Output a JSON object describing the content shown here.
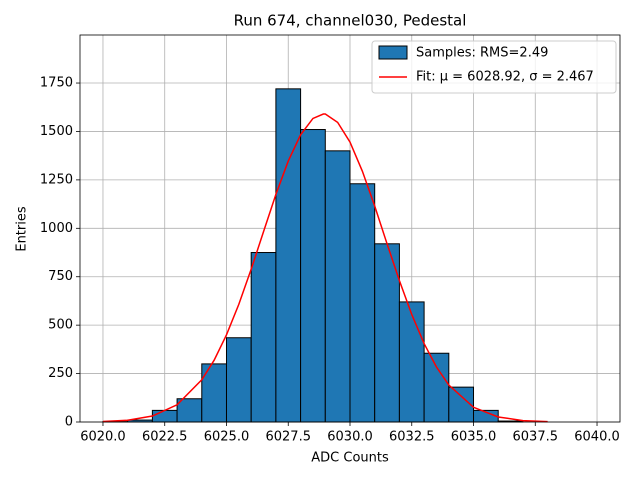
{
  "chart_data": {
    "type": "histogram",
    "title": "Run 674, channel030, Pedestal",
    "x_label": "ADC Counts",
    "y_label": "Entries",
    "name": "Samples: RMS=2.49",
    "color": "#1f77b4",
    "edgecolor": "#000000",
    "bins": [
      6020,
      6021,
      6022,
      6023,
      6024,
      6025,
      6026,
      6027,
      6028,
      6029,
      6030,
      6031,
      6032,
      6033,
      6034,
      6035,
      6036,
      6037
    ],
    "values": [
      2,
      10,
      60,
      120,
      300,
      435,
      875,
      1720,
      1510,
      1400,
      1230,
      920,
      620,
      355,
      180,
      60,
      5
    ],
    "fit": {
      "type": "line",
      "name": "Fit: μ = 6028.92, σ = 2.467",
      "color": "#ff0000",
      "x": [
        6020,
        6021,
        6022,
        6023,
        6024,
        6024.5,
        6025,
        6025.5,
        6026,
        6026.5,
        6027,
        6027.5,
        6028,
        6028.5,
        6028.92,
        6029,
        6029.5,
        6030,
        6030.5,
        6031,
        6031.5,
        6032,
        6032.5,
        6033,
        6033.5,
        6034,
        6035,
        6036,
        6037,
        6038
      ],
      "values": [
        2.3,
        9.2,
        31,
        89,
        218,
        319,
        450,
        608,
        789,
        983,
        1175,
        1347,
        1483,
        1567,
        1590,
        1590,
        1547,
        1445,
        1295,
        1115,
        920,
        730,
        555,
        405,
        284,
        191,
        76,
        26,
        7.4,
        1.8
      ]
    },
    "xlim": [
      6019.07,
      6040.93
    ],
    "ylim": [
      0,
      1998
    ],
    "xticks": [
      {
        "value": 6020,
        "label": "6020.0"
      },
      6022.5,
      {
        "value": 6025,
        "label": "6025.0"
      },
      6027.5,
      {
        "value": 6030,
        "label": "6030.0"
      },
      6032.5,
      {
        "value": 6035,
        "label": "6035.0"
      },
      6037.5,
      {
        "value": 6040,
        "label": "6040.0"
      }
    ],
    "yticks": [
      0,
      250,
      500,
      750,
      1000,
      1250,
      1500,
      1750
    ],
    "grid": true,
    "legend": "upper right"
  }
}
